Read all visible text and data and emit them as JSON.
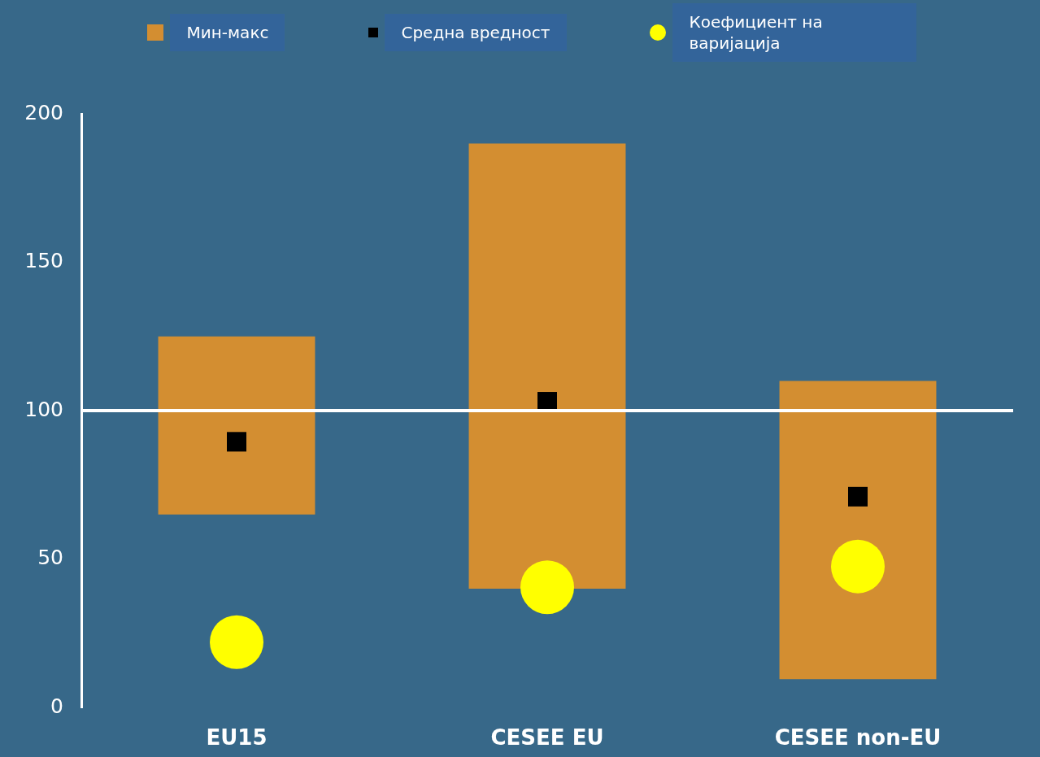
{
  "chart_data": {
    "type": "bar",
    "categories": [
      "EU15",
      "CESEE EU",
      "CESEE non-EU"
    ],
    "series": [
      {
        "name": "Мин-макс",
        "color": "#d38e31",
        "values": [
          60,
          150,
          100.5
        ],
        "base": [
          65,
          40,
          9.5
        ]
      },
      {
        "name": "Средна вредност",
        "type": "scatter",
        "marker": "square",
        "color": "#000000",
        "values": [
          89.5,
          103,
          71
        ]
      },
      {
        "name": "Коефициент на варијација",
        "type": "scatter",
        "marker": "circle",
        "color": "#ffff00",
        "values": [
          22,
          40.5,
          47.5
        ]
      }
    ],
    "ylim": [
      0,
      200
    ],
    "yticks": [
      0,
      50,
      100,
      150,
      200
    ],
    "ref_lines": [
      {
        "axis": "y",
        "value": 100,
        "color": "#ffffff"
      }
    ],
    "grid": false,
    "legend": "top"
  }
}
